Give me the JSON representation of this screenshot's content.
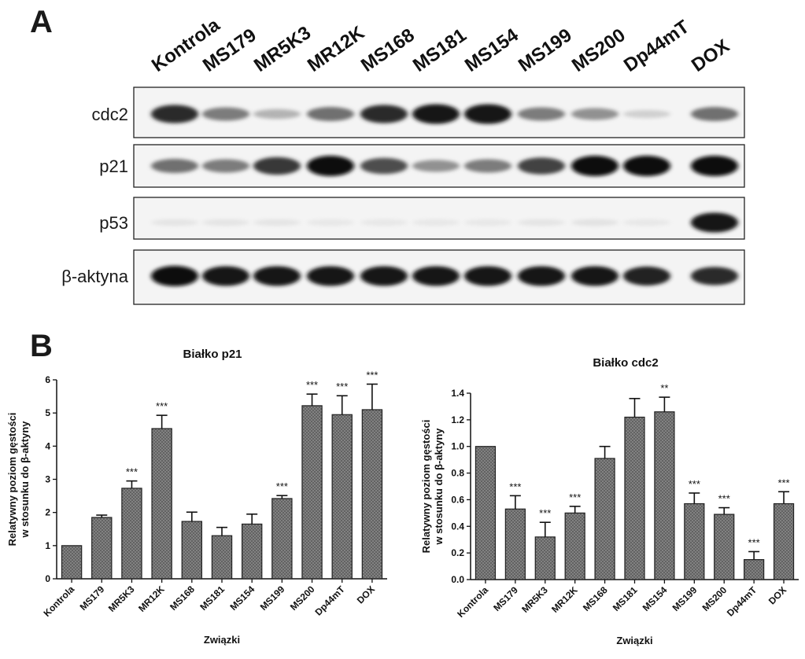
{
  "panel_a": {
    "letter": "A",
    "lane_labels": [
      "Kontrola",
      "MS179",
      "MR5K3",
      "MR12K",
      "MS168",
      "MS181",
      "MS154",
      "MS199",
      "MS200",
      "Dp44mT",
      "DOX"
    ],
    "rows": [
      {
        "label": "cdc2",
        "intensities": [
          0.85,
          0.5,
          0.25,
          0.55,
          0.85,
          0.95,
          0.95,
          0.5,
          0.4,
          0.12,
          0.55
        ]
      },
      {
        "label": "p21",
        "intensities": [
          0.55,
          0.5,
          0.8,
          1.0,
          0.7,
          0.4,
          0.5,
          0.75,
          1.0,
          1.0,
          1.0
        ]
      },
      {
        "label": "p53",
        "intensities": [
          0.03,
          0.03,
          0.03,
          0.02,
          0.02,
          0.02,
          0.02,
          0.03,
          0.04,
          0.02,
          0.95
        ]
      },
      {
        "label": "β-aktyna",
        "intensities": [
          1.0,
          0.95,
          0.95,
          0.95,
          0.95,
          0.95,
          0.95,
          0.95,
          0.95,
          0.9,
          0.85
        ]
      }
    ]
  },
  "panel_b": {
    "letter": "B"
  },
  "chart_data": [
    {
      "type": "bar",
      "title": "Białko p21",
      "xlabel": "Związki",
      "ylabel_lines": [
        "Relatywny poziom gęstości",
        "w stosunku do β-aktyny"
      ],
      "categories": [
        "Kontrola",
        "MS179",
        "MR5K3",
        "MR12K",
        "MS168",
        "MS181",
        "MS154",
        "MS199",
        "MS200",
        "Dp44mT",
        "DOX"
      ],
      "values": [
        1.0,
        1.85,
        2.73,
        4.53,
        1.73,
        1.3,
        1.65,
        2.42,
        5.22,
        4.95,
        5.1
      ],
      "errors": [
        0.0,
        0.07,
        0.22,
        0.4,
        0.28,
        0.25,
        0.3,
        0.09,
        0.35,
        0.57,
        0.77
      ],
      "significance": [
        "",
        "",
        "***",
        "***",
        "",
        "",
        "",
        "***",
        "***",
        "***",
        "***"
      ],
      "ylim": [
        0,
        6
      ],
      "yticks": [
        0,
        1,
        2,
        3,
        4,
        5,
        6
      ],
      "ytick_labels": [
        "0",
        "1",
        "2",
        "3",
        "4",
        "5",
        "6"
      ]
    },
    {
      "type": "bar",
      "title": "Białko cdc2",
      "xlabel": "Związki",
      "ylabel_lines": [
        "Relatywny poziom gęstości",
        "w stosunku do β-aktyny"
      ],
      "categories": [
        "Kontrola",
        "MS179",
        "MR5K3",
        "MR12K",
        "MS168",
        "MS181",
        "MS154",
        "MS199",
        "MS200",
        "Dp44mT",
        "DOX"
      ],
      "values": [
        1.0,
        0.53,
        0.32,
        0.5,
        0.91,
        1.22,
        1.26,
        0.57,
        0.49,
        0.15,
        0.57
      ],
      "errors": [
        0.0,
        0.1,
        0.11,
        0.05,
        0.09,
        0.14,
        0.11,
        0.08,
        0.05,
        0.06,
        0.09
      ],
      "significance": [
        "",
        "***",
        "***",
        "***",
        "",
        "",
        "**",
        "***",
        "***",
        "***",
        "***"
      ],
      "ylim": [
        0,
        1.4
      ],
      "yticks": [
        0,
        0.2,
        0.4,
        0.6,
        0.8,
        1.0,
        1.2,
        1.4
      ],
      "ytick_labels": [
        "0.0",
        "0.2",
        "0.4",
        "0.6",
        "0.8",
        "1.0",
        "1.2",
        "1.4"
      ]
    }
  ]
}
